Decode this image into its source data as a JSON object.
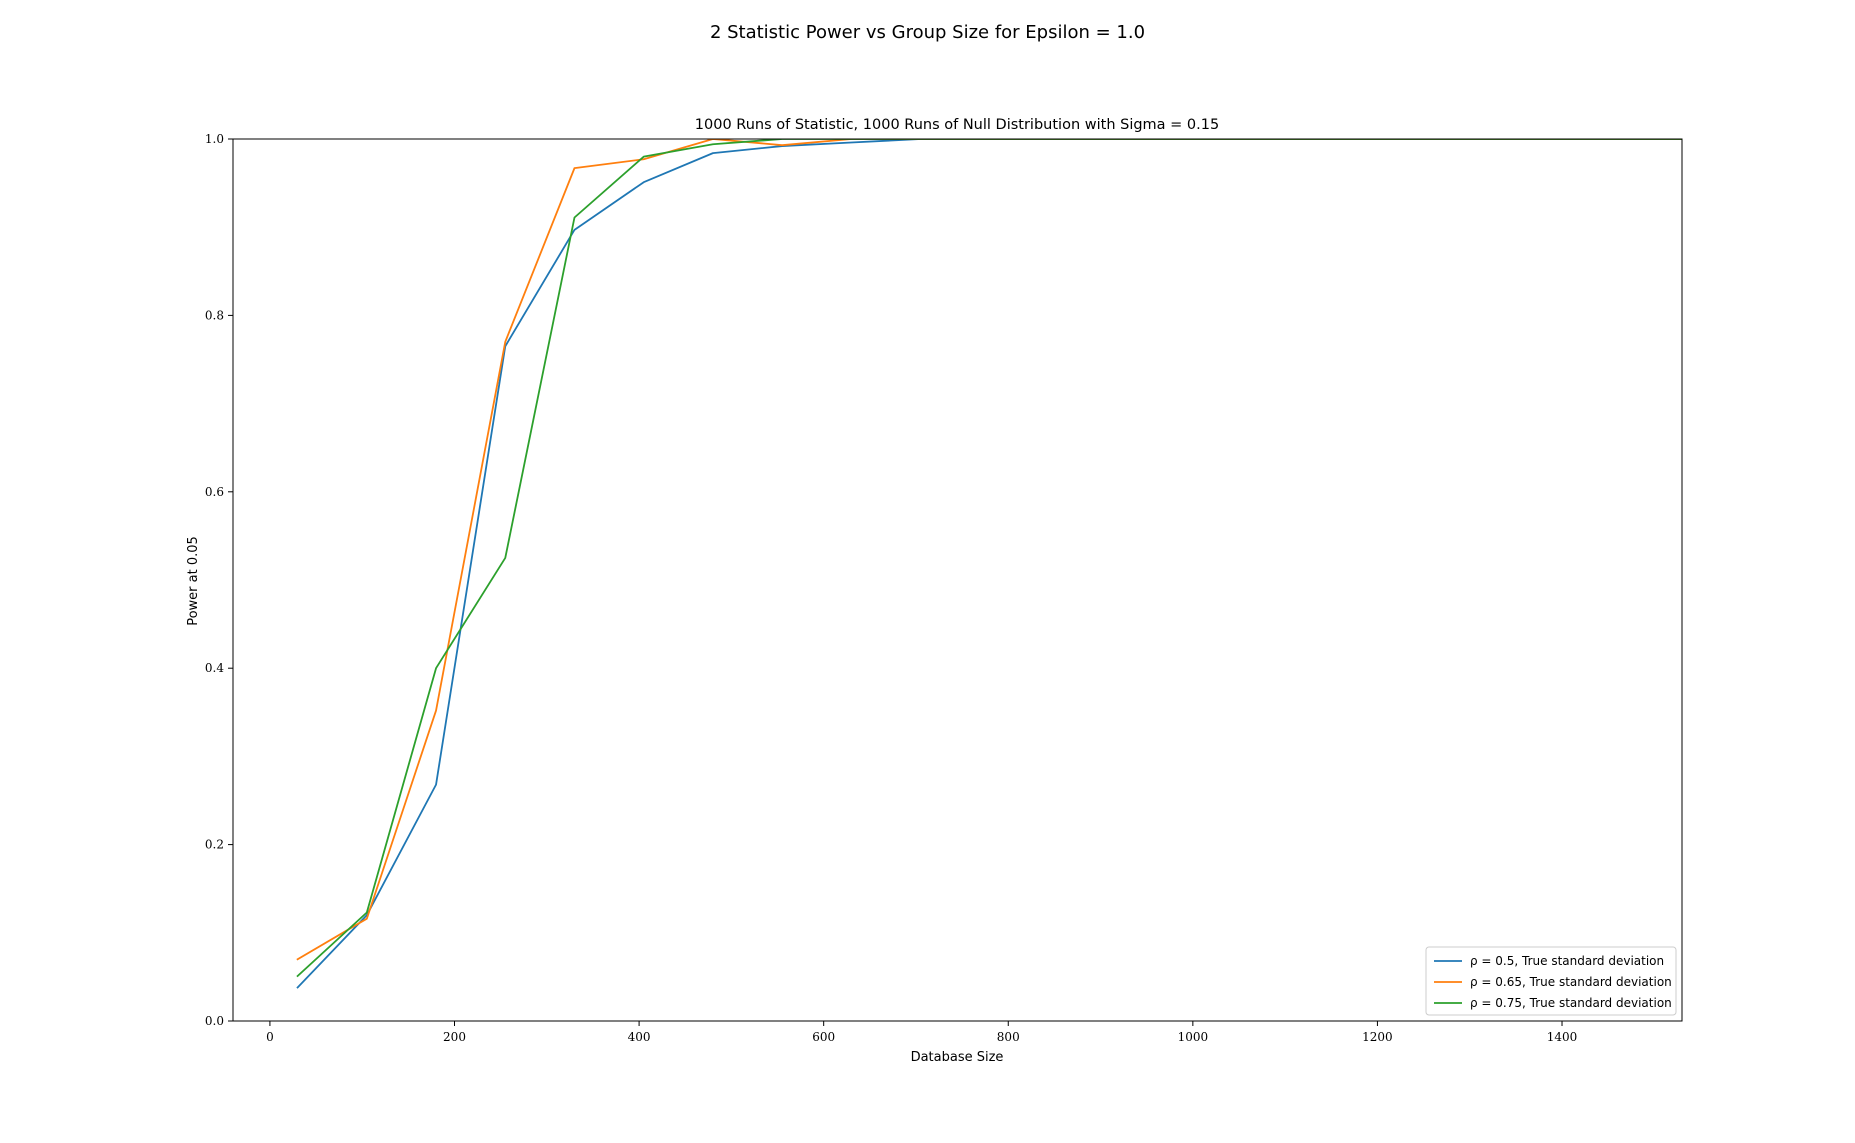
{
  "chart_data": {
    "type": "line",
    "suptitle": "2 Statistic Power vs Group Size for Epsilon = 1.0",
    "title": "1000 Runs of Statistic, 1000 Runs of Null Distribution with Sigma = 0.15",
    "xlabel": "Database Size",
    "ylabel": "Power at 0.05",
    "xlim": [
      -40,
      1530
    ],
    "ylim": [
      0.0,
      1.0
    ],
    "xticks": [
      0,
      200,
      400,
      600,
      800,
      1000,
      1200,
      1400
    ],
    "yticks": [
      0.0,
      0.2,
      0.4,
      0.6,
      0.8,
      1.0
    ],
    "legend_position": "lower-right",
    "grid": false,
    "series": [
      {
        "name": "ρ = 0.5, True standard deviation",
        "color": "#1f77b4",
        "x": [
          30,
          105,
          180,
          255,
          330,
          405,
          480,
          555,
          630,
          705,
          780,
          855,
          930,
          1005,
          1080,
          1155,
          1230,
          1305,
          1380,
          1455,
          1530
        ],
        "y": [
          0.038,
          0.12,
          0.268,
          0.765,
          0.897,
          0.951,
          0.984,
          0.992,
          0.996,
          1.0,
          1.0,
          1.0,
          1.0,
          1.0,
          1.0,
          1.0,
          1.0,
          1.0,
          1.0,
          1.0,
          1.0
        ]
      },
      {
        "name": "ρ = 0.65, True standard deviation",
        "color": "#ff7f0e",
        "x": [
          30,
          105,
          180,
          255,
          330,
          405,
          480,
          555,
          630,
          705,
          780,
          855,
          930,
          1005,
          1080,
          1155,
          1230,
          1305,
          1380,
          1455,
          1530
        ],
        "y": [
          0.07,
          0.116,
          0.352,
          0.77,
          0.967,
          0.977,
          1.0,
          0.993,
          1.0,
          1.0,
          1.0,
          1.0,
          1.0,
          1.0,
          1.0,
          1.0,
          1.0,
          1.0,
          1.0,
          1.0,
          1.0
        ]
      },
      {
        "name": "ρ = 0.75, True standard deviation",
        "color": "#2ca02c",
        "x": [
          30,
          105,
          180,
          255,
          330,
          405,
          480,
          555,
          630,
          705,
          780,
          855,
          930,
          1005,
          1080,
          1155,
          1230,
          1305,
          1380,
          1455,
          1530
        ],
        "y": [
          0.051,
          0.123,
          0.4,
          0.525,
          0.911,
          0.98,
          0.994,
          1.0,
          1.0,
          1.0,
          1.0,
          1.0,
          1.0,
          1.0,
          1.0,
          1.0,
          1.0,
          1.0,
          1.0,
          1.0,
          1.0
        ]
      }
    ]
  }
}
